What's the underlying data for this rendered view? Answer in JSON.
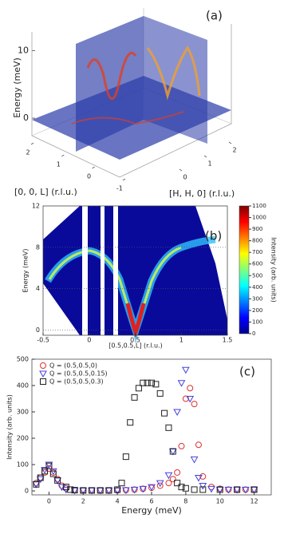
{
  "chart_data": [
    {
      "type": "3d",
      "label": "(a)",
      "zlabel": "Energy (meV)",
      "xlabel": "[0, 0, L] (r.l.u.)",
      "ylabel": "[H, H, 0] (r.l.u.)",
      "xlim": [
        -1.4,
        2.3
      ],
      "xticks": [
        2,
        1,
        0,
        -1
      ],
      "ylim": [
        -0.3,
        2.3
      ],
      "yticks": [
        0,
        1,
        2
      ],
      "zlim": [
        -2,
        13
      ],
      "zticks": [
        0,
        10
      ]
    },
    {
      "type": "heatmap",
      "label": "(b)",
      "xlabel": "[0.5,0.5,L] (r.l.u.)",
      "ylabel": "Energy (meV)",
      "colorbar_label": "Intensity (arb. units)",
      "xlim": [
        -0.5,
        1.5
      ],
      "xticks": [
        -0.5,
        0,
        0.5,
        1,
        1.5
      ],
      "ylim": [
        -0.5,
        12
      ],
      "yticks": [
        0,
        4,
        8,
        12
      ],
      "clim": [
        0,
        1100
      ],
      "cticks": [
        0,
        100,
        200,
        300,
        400,
        500,
        600,
        700,
        800,
        900,
        1000,
        1100
      ],
      "colormap": "jet"
    },
    {
      "type": "scatter",
      "label": "(c)",
      "xlabel": "Energy (meV)",
      "ylabel": "Intensity (arb. units)",
      "xlim": [
        -1,
        13
      ],
      "xticks": [
        0,
        2,
        4,
        6,
        8,
        10,
        12
      ],
      "ylim": [
        -15,
        500
      ],
      "yticks": [
        0,
        100,
        200,
        300,
        400,
        500
      ],
      "legend": "upper left",
      "series": [
        {
          "name": "Q = (0.5,0.5,0)",
          "color": "#e03030",
          "marker": "circle",
          "x": [
            -0.75,
            -0.5,
            -0.25,
            0,
            0.25,
            0.5,
            0.75,
            1,
            1.5,
            2,
            2.5,
            3,
            3.5,
            4,
            4.5,
            5,
            5.5,
            6,
            6.5,
            7,
            7.25,
            7.5,
            7.75,
            8,
            8.25,
            8.5,
            8.75,
            9,
            9.5,
            10,
            10.5,
            11,
            11.5,
            12
          ],
          "values": [
            30,
            50,
            70,
            85,
            70,
            45,
            20,
            10,
            3,
            2,
            2,
            2,
            2,
            2,
            3,
            5,
            8,
            12,
            20,
            30,
            45,
            70,
            170,
            350,
            390,
            330,
            175,
            55,
            15,
            8,
            5,
            5,
            5,
            5
          ]
        },
        {
          "name": "Q = (0.5,0.5,0.15)",
          "color": "#4040e0",
          "marker": "triangle-down",
          "x": [
            -0.75,
            -0.5,
            -0.25,
            0,
            0.25,
            0.5,
            0.75,
            1,
            1.5,
            2,
            2.5,
            3,
            3.5,
            4,
            4.5,
            5,
            5.5,
            6,
            6.5,
            7,
            7.25,
            7.5,
            7.75,
            8,
            8.25,
            8.5,
            8.75,
            9,
            9.5,
            10,
            10.5,
            11,
            11.5,
            12
          ],
          "values": [
            25,
            45,
            80,
            100,
            75,
            40,
            15,
            5,
            2,
            2,
            2,
            2,
            2,
            2,
            3,
            5,
            8,
            15,
            30,
            60,
            150,
            300,
            410,
            460,
            350,
            120,
            50,
            20,
            8,
            5,
            5,
            5,
            5,
            5
          ]
        },
        {
          "name": "Q = (0.5,0.5,0.3)",
          "color": "#202020",
          "marker": "square",
          "x": [
            -0.75,
            -0.5,
            -0.25,
            0,
            0.25,
            0.5,
            1,
            1.25,
            1.5,
            2,
            2.5,
            3,
            3.5,
            4,
            4.25,
            4.5,
            4.75,
            5,
            5.25,
            5.5,
            5.75,
            6,
            6.25,
            6.5,
            6.75,
            7,
            7.25,
            7.5,
            7.75,
            8,
            8.5,
            9,
            10,
            11,
            12
          ],
          "values": [
            25,
            50,
            75,
            95,
            65,
            40,
            15,
            5,
            3,
            2,
            2,
            2,
            2,
            5,
            30,
            130,
            260,
            355,
            390,
            410,
            410,
            410,
            405,
            370,
            295,
            240,
            150,
            30,
            15,
            10,
            5,
            5,
            5,
            5,
            5
          ]
        }
      ]
    }
  ]
}
